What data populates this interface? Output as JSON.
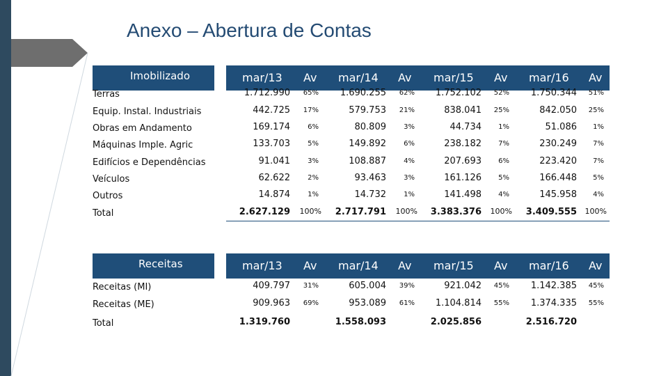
{
  "title": "Anexo – Abertura de Contas",
  "table1": {
    "header": [
      "Imobilizado",
      "mar/13",
      "Av",
      "mar/14",
      "Av",
      "mar/15",
      "Av",
      "mar/16",
      "Av"
    ],
    "rows": [
      [
        "Terras",
        "1.712.990",
        "65%",
        "1.690.255",
        "62%",
        "1.752.102",
        "52%",
        "1.750.344",
        "51%"
      ],
      [
        "Equip. Instal. Industriais",
        "442.725",
        "17%",
        "579.753",
        "21%",
        "838.041",
        "25%",
        "842.050",
        "25%"
      ],
      [
        "Obras em Andamento",
        "169.174",
        "6%",
        "80.809",
        "3%",
        "44.734",
        "1%",
        "51.086",
        "1%"
      ],
      [
        "Máquinas Imple. Agric",
        "133.703",
        "5%",
        "149.892",
        "6%",
        "238.182",
        "7%",
        "230.249",
        "7%"
      ],
      [
        "Edifícios e Dependências",
        "91.041",
        "3%",
        "108.887",
        "4%",
        "207.693",
        "6%",
        "223.420",
        "7%"
      ],
      [
        "Veículos",
        "62.622",
        "2%",
        "93.463",
        "3%",
        "161.126",
        "5%",
        "166.448",
        "5%"
      ],
      [
        "Outros",
        "14.874",
        "1%",
        "14.732",
        "1%",
        "141.498",
        "4%",
        "145.958",
        "4%"
      ]
    ],
    "total": [
      "Total",
      "2.627.129",
      "100%",
      "2.717.791",
      "100%",
      "3.383.376",
      "100%",
      "3.409.555",
      "100%"
    ]
  },
  "table2": {
    "header": [
      "Receitas",
      "mar/13",
      "Av",
      "mar/14",
      "Av",
      "mar/15",
      "Av",
      "mar/16",
      "Av"
    ],
    "rows": [
      [
        "Receitas (MI)",
        "409.797",
        "31%",
        "605.004",
        "39%",
        "921.042",
        "45%",
        "1.142.385",
        "45%"
      ],
      [
        "Receitas (ME)",
        "909.963",
        "69%",
        "953.089",
        "61%",
        "1.104.814",
        "55%",
        "1.374.335",
        "55%"
      ]
    ],
    "total": [
      "Total",
      "1.319.760",
      "",
      "1.558.093",
      "",
      "2.025.856",
      "",
      "2.516.720",
      ""
    ]
  },
  "colors": {
    "header_bg": "#1f4e79",
    "title": "#244b73",
    "sidebar": "#2e4a5f"
  }
}
